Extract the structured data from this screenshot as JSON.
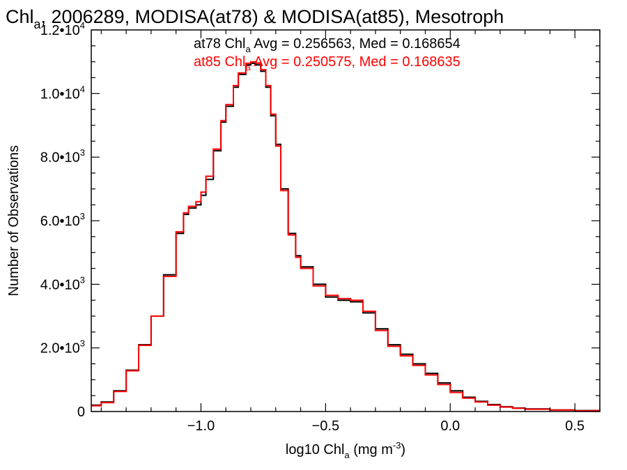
{
  "chart_data": {
    "type": "line",
    "title": {
      "prefix": "Chl",
      "sub": "a",
      "rest": ", 2006289, MODISA(at78) & MODISA(at85), Mesotroph"
    },
    "xlabel": {
      "prefix": "log10 Chl",
      "sub": "a",
      "mid": " (mg m",
      "sup": "-3",
      "end": ")"
    },
    "ylabel": "Number of Observations",
    "xlim": [
      -1.44,
      0.6
    ],
    "ylim": [
      0,
      12000
    ],
    "x_ticks": [
      {
        "value": -1.0,
        "label": "−1.0"
      },
      {
        "value": -0.5,
        "label": "−0.5"
      },
      {
        "value": 0.0,
        "label": "0.0"
      },
      {
        "value": 0.5,
        "label": "0.5"
      }
    ],
    "y_ticks": [
      {
        "value": 0,
        "mant": "0",
        "exp": ""
      },
      {
        "value": 2000,
        "mant": "2.0•10",
        "exp": "3"
      },
      {
        "value": 4000,
        "mant": "4.0•10",
        "exp": "3"
      },
      {
        "value": 6000,
        "mant": "6.0•10",
        "exp": "3"
      },
      {
        "value": 8000,
        "mant": "8.0•10",
        "exp": "3"
      },
      {
        "value": 10000,
        "mant": "1.0•10",
        "exp": "4"
      },
      {
        "value": 12000,
        "mant": "1.2•10",
        "exp": "4"
      }
    ],
    "annotations": [
      {
        "prefix": "at78 Chl",
        "sub": "a",
        "rest": " Avg = 0.256563, Med = 0.168654",
        "color": "#000000"
      },
      {
        "prefix": "at85 Chl",
        "sub": "a",
        "rest": " Avg = 0.250575, Med = 0.168635",
        "color": "#ff0000"
      }
    ],
    "series": [
      {
        "color": "#000000",
        "x": [
          -1.44,
          -1.4,
          -1.35,
          -1.3,
          -1.25,
          -1.2,
          -1.15,
          -1.1,
          -1.07,
          -1.05,
          -1.02,
          -1.0,
          -0.98,
          -0.95,
          -0.92,
          -0.9,
          -0.87,
          -0.85,
          -0.82,
          -0.8,
          -0.78,
          -0.76,
          -0.74,
          -0.72,
          -0.7,
          -0.68,
          -0.65,
          -0.62,
          -0.6,
          -0.55,
          -0.5,
          -0.45,
          -0.4,
          -0.35,
          -0.3,
          -0.25,
          -0.2,
          -0.15,
          -0.1,
          -0.05,
          0.0,
          0.05,
          0.1,
          0.15,
          0.2,
          0.25,
          0.3,
          0.4,
          0.5,
          0.6
        ],
        "y": [
          200,
          300,
          650,
          1300,
          2100,
          3000,
          4300,
          5600,
          6200,
          6400,
          6500,
          6800,
          7300,
          8200,
          9100,
          9600,
          10200,
          10600,
          10900,
          10950,
          10900,
          10700,
          10200,
          9300,
          8400,
          7000,
          5600,
          4900,
          4550,
          4000,
          3600,
          3500,
          3450,
          3100,
          2600,
          2100,
          1800,
          1500,
          1200,
          900,
          650,
          450,
          320,
          220,
          150,
          110,
          80,
          50,
          30,
          20
        ]
      },
      {
        "color": "#ff0000",
        "x": [
          -1.44,
          -1.4,
          -1.35,
          -1.3,
          -1.25,
          -1.2,
          -1.15,
          -1.1,
          -1.07,
          -1.05,
          -1.02,
          -1.0,
          -0.98,
          -0.95,
          -0.92,
          -0.9,
          -0.87,
          -0.85,
          -0.82,
          -0.8,
          -0.78,
          -0.76,
          -0.74,
          -0.72,
          -0.7,
          -0.68,
          -0.65,
          -0.62,
          -0.6,
          -0.55,
          -0.5,
          -0.45,
          -0.4,
          -0.35,
          -0.3,
          -0.25,
          -0.2,
          -0.15,
          -0.1,
          -0.05,
          0.0,
          0.05,
          0.1,
          0.15,
          0.2,
          0.25,
          0.3,
          0.4,
          0.5,
          0.6
        ],
        "y": [
          180,
          280,
          630,
          1280,
          2080,
          3000,
          4250,
          5650,
          6250,
          6450,
          6600,
          6900,
          7400,
          8250,
          9150,
          9650,
          10250,
          10650,
          10950,
          11000,
          10950,
          10750,
          10250,
          9350,
          8350,
          6950,
          5550,
          4850,
          4500,
          3950,
          3650,
          3550,
          3500,
          3150,
          2550,
          2050,
          1750,
          1450,
          1150,
          850,
          600,
          420,
          300,
          200,
          140,
          100,
          70,
          45,
          25,
          15
        ]
      }
    ]
  }
}
